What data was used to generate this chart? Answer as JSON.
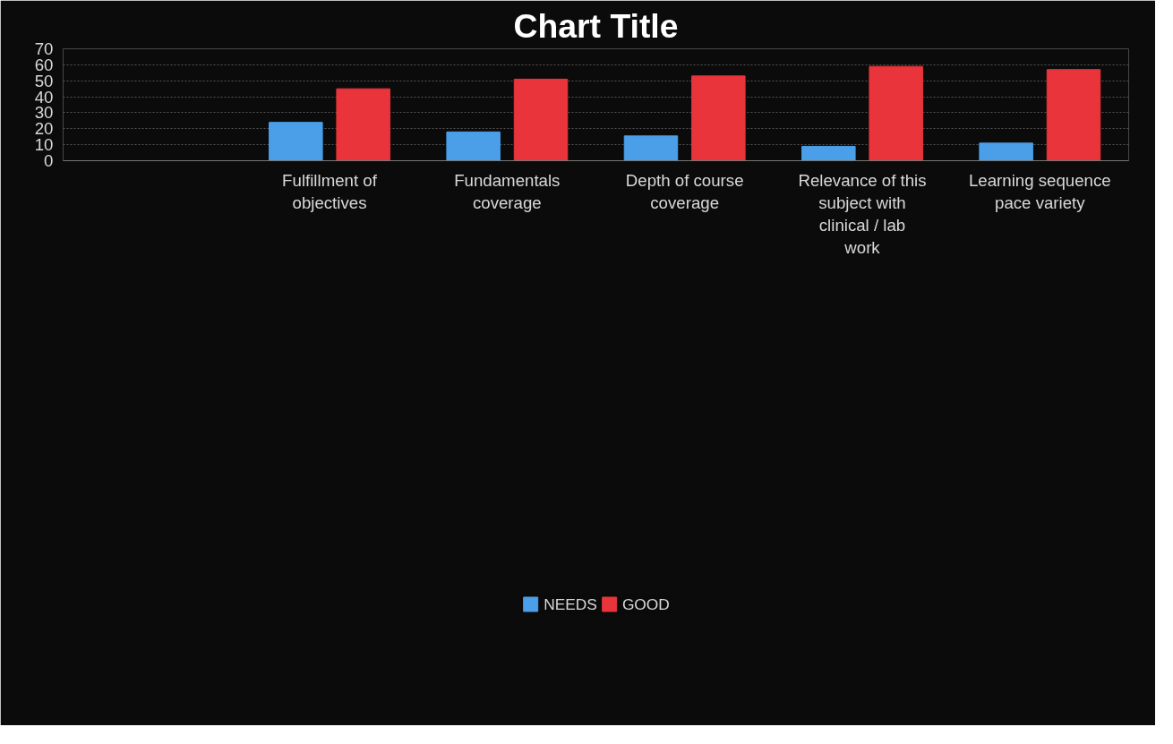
{
  "chart_data": {
    "type": "bar",
    "title": "Chart Title",
    "categories": [
      null,
      "Fulfillment of objectives",
      "Fundamentals coverage",
      "Depth of course coverage",
      "Relevance of this subject with clinical / lab work",
      "Learning sequence pace variety"
    ],
    "series": [
      {
        "name": "NEEDS",
        "color": "#4a9fe8",
        "values": [
          null,
          24,
          18,
          15.5,
          9,
          11
        ]
      },
      {
        "name": "GOOD",
        "color": "#e8343a",
        "values": [
          null,
          45,
          51,
          53,
          59,
          57
        ]
      }
    ],
    "ylim": [
      0,
      70
    ],
    "yticks": [
      0,
      10,
      20,
      30,
      40,
      50,
      60,
      70
    ],
    "grid": "y",
    "legend": "bottom"
  }
}
